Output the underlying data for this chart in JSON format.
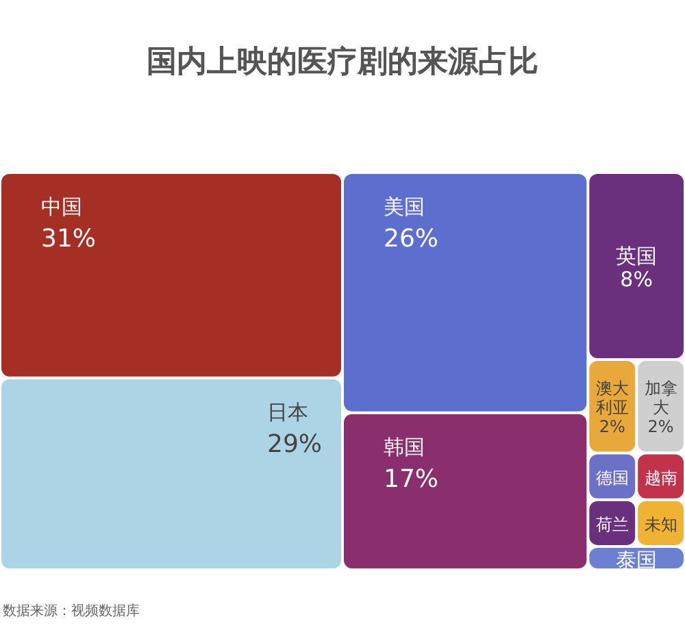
{
  "chart_data": {
    "type": "other",
    "title": "国内上映的医疗剧的来源占比",
    "categories": [
      "中国",
      "日本",
      "美国",
      "韩国",
      "英国",
      "澳大利亚",
      "加拿大",
      "德国",
      "越南",
      "荷兰",
      "未知",
      "泰国"
    ],
    "values": [
      31,
      29,
      26,
      17,
      8,
      2,
      2,
      null,
      null,
      null,
      null,
      null
    ],
    "value_labels": [
      "31%",
      "29%",
      "26%",
      "17%",
      "8%",
      "2%",
      "2%",
      null,
      null,
      null,
      null,
      null
    ],
    "colors": [
      "#a62f25",
      "#acd4e4",
      "#5c6fcf",
      "#8b2e6d",
      "#6a2f7d",
      "#e9a93a",
      "#cfcfcf",
      "#6b70c9",
      "#c2334b",
      "#6a2f7d",
      "#f0b232",
      "#6c80d1"
    ],
    "annotations": [
      "数据来源：视频数据库"
    ]
  }
}
